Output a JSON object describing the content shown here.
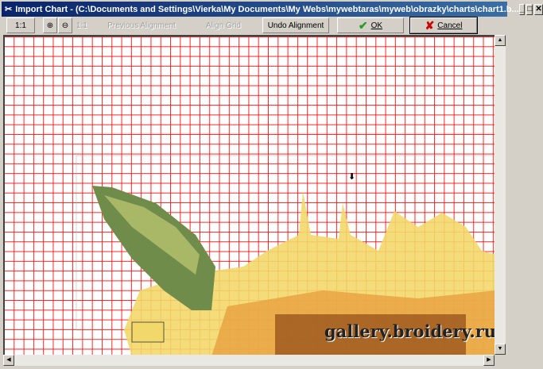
{
  "window": {
    "title": "Import Chart - (C:\\Documents and Settings\\Vierka\\My Documents\\My Webs\\mywebtaras\\myweb\\obrazky\\charts\\chart1.b...",
    "minimize": "_",
    "maximize": "□",
    "close": "✕"
  },
  "toolbar": {
    "zoom_11": "1:1",
    "zoom_in": "zoom-in-icon",
    "zoom_out": "zoom-out-icon",
    "fit": "1:1",
    "previous_alignment": "Previous Alignment",
    "align_grid": "Align Grid",
    "undo_alignment": "Undo Alignment",
    "ok": "OK",
    "cancel": "Cancel"
  },
  "watermark": "gallery.broidery.ru",
  "colors": {
    "grid": "#ff0000",
    "title_bar": "#0a246a",
    "ok_check": "#2a9a2a",
    "cancel_x": "#cc0000",
    "green_stitch": "#6f8c4a",
    "yellow_stitch": "#f2d86a",
    "brown_stitch": "#a05a20"
  }
}
